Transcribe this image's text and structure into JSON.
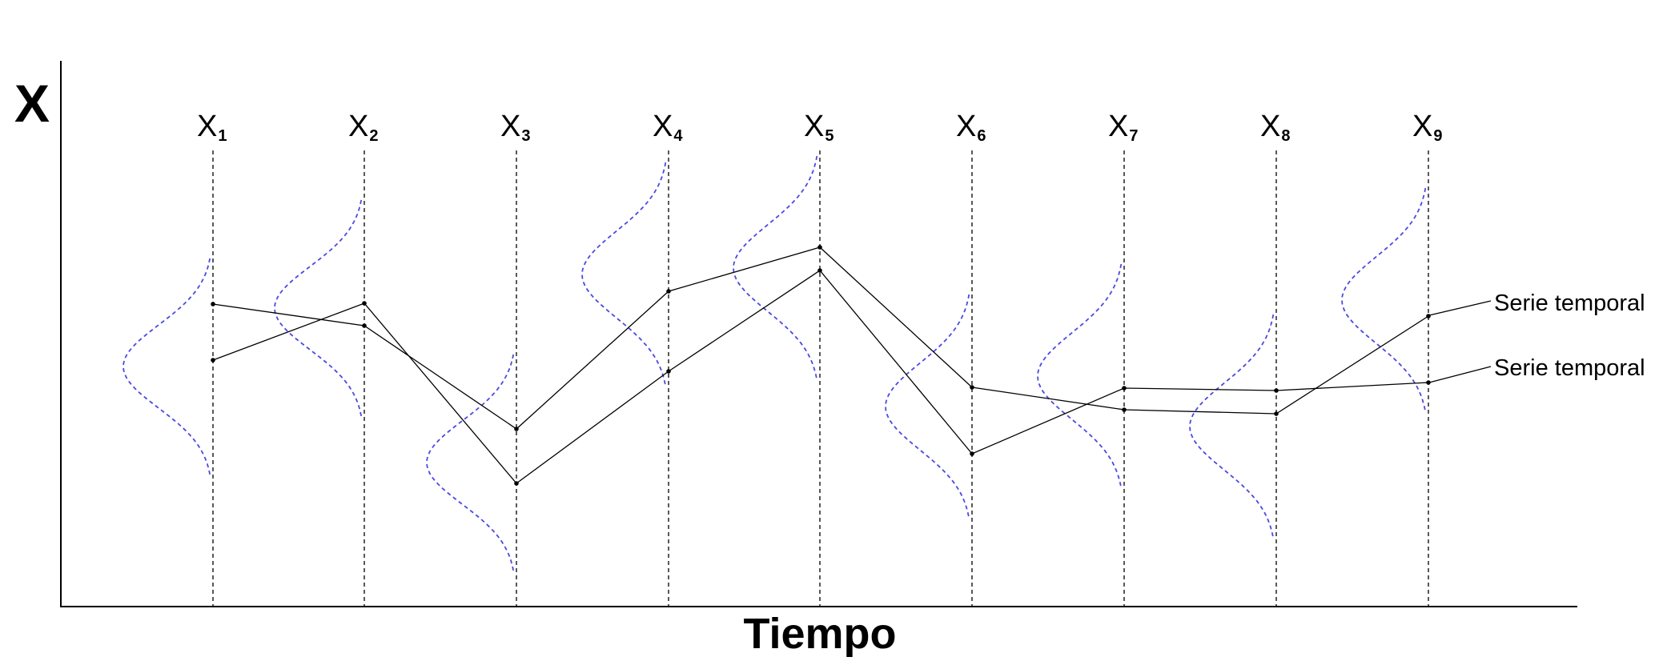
{
  "axes": {
    "y_label": "X",
    "x_label": "Tiempo"
  },
  "variables": [
    {
      "base": "X",
      "sub": "1"
    },
    {
      "base": "X",
      "sub": "2"
    },
    {
      "base": "X",
      "sub": "3"
    },
    {
      "base": "X",
      "sub": "4"
    },
    {
      "base": "X",
      "sub": "5"
    },
    {
      "base": "X",
      "sub": "6"
    },
    {
      "base": "X",
      "sub": "7"
    },
    {
      "base": "X",
      "sub": "8"
    },
    {
      "base": "X",
      "sub": "9"
    }
  ],
  "series_labels": [
    "Serie temporal",
    "Serie temporal"
  ],
  "colors": {
    "axis": "#000000",
    "distribution": "#4a4ae0",
    "series": "#000000"
  }
}
